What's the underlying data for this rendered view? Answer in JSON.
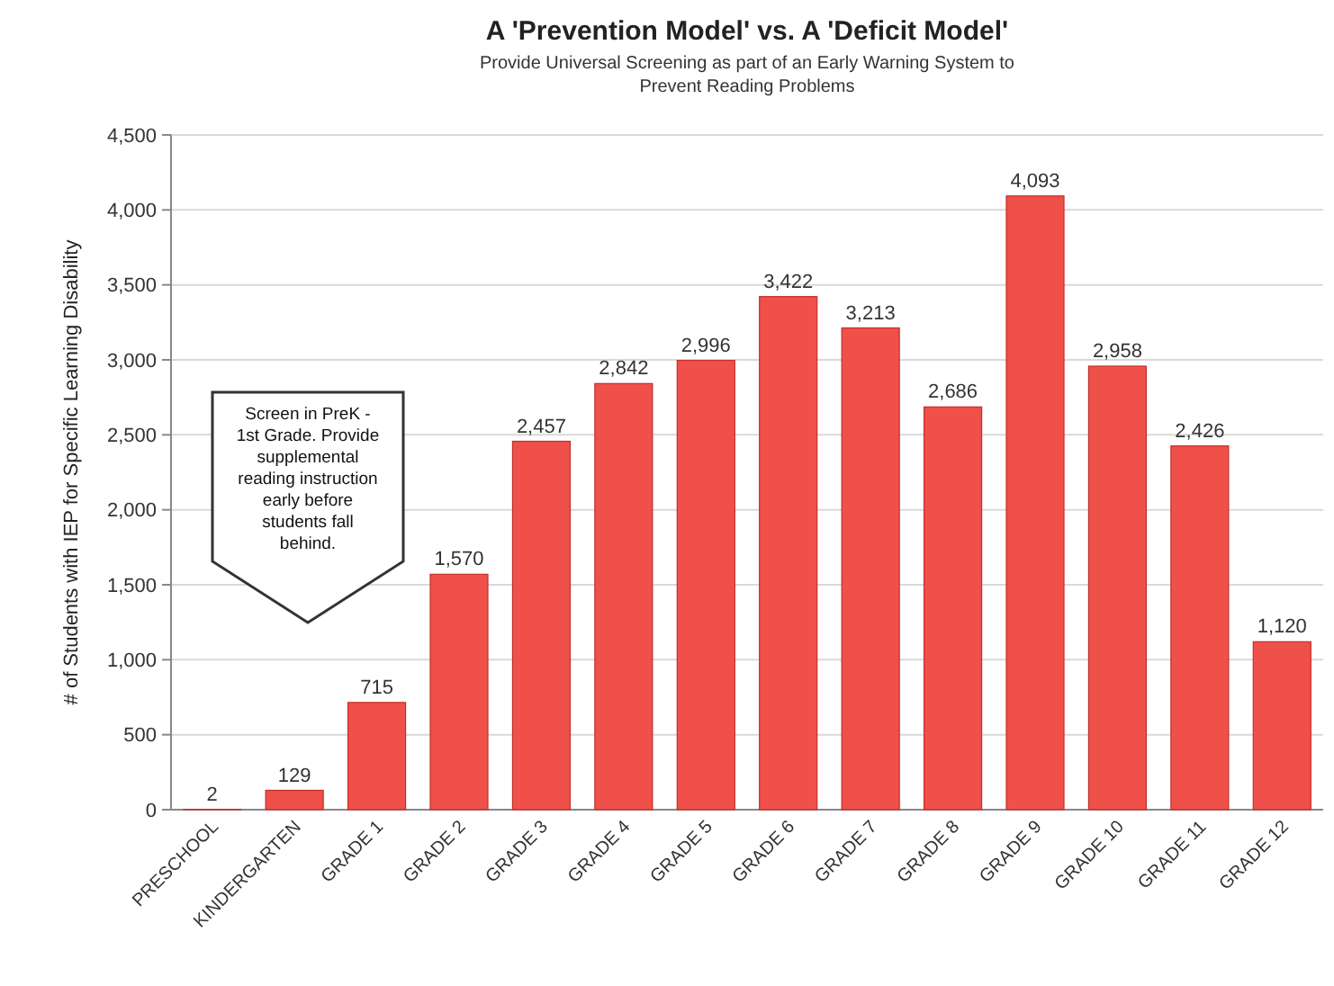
{
  "chart_data": {
    "type": "bar",
    "title": "A 'Prevention Model' vs. A 'Deficit Model'",
    "subtitle": "Provide Universal Screening as part of an Early Warning System to Prevent Reading Problems",
    "ylabel": "# of Students with IEP for Specific Learning Disability",
    "categories": [
      "PRESCHOOL",
      "KINDERGARTEN",
      "GRADE 1",
      "GRADE 2",
      "GRADE 3",
      "GRADE 4",
      "GRADE 5",
      "GRADE 6",
      "GRADE 7",
      "GRADE 8",
      "GRADE 9",
      "GRADE 10",
      "GRADE 11",
      "GRADE 12"
    ],
    "values": [
      2,
      129,
      715,
      1570,
      2457,
      2842,
      2996,
      3422,
      3213,
      2686,
      4093,
      2958,
      2426,
      1120
    ],
    "value_labels": [
      "2",
      "129",
      "715",
      "1,570",
      "2,457",
      "2,842",
      "2,996",
      "3,422",
      "3,213",
      "2,686",
      "4,093",
      "2,958",
      "2,426",
      "1,120"
    ],
    "color": "#f0504a",
    "ylim": [
      0,
      4500
    ],
    "yticks": [
      {
        "value": 0,
        "label": "0"
      },
      {
        "value": 500,
        "label": "500"
      },
      {
        "value": 1000,
        "label": "1,000"
      },
      {
        "value": 1500,
        "label": "1,500"
      },
      {
        "value": 2000,
        "label": "2,000"
      },
      {
        "value": 2500,
        "label": "2,500"
      },
      {
        "value": 3000,
        "label": "3,000"
      },
      {
        "value": 3500,
        "label": "3,500"
      },
      {
        "value": 4000,
        "label": "4,000"
      },
      {
        "value": 4500,
        "label": "4,500"
      }
    ],
    "grid": "y",
    "annotations": [
      "Screen in PreK - 1st Grade. Provide supplemental reading instruction early before students fall behind."
    ]
  }
}
